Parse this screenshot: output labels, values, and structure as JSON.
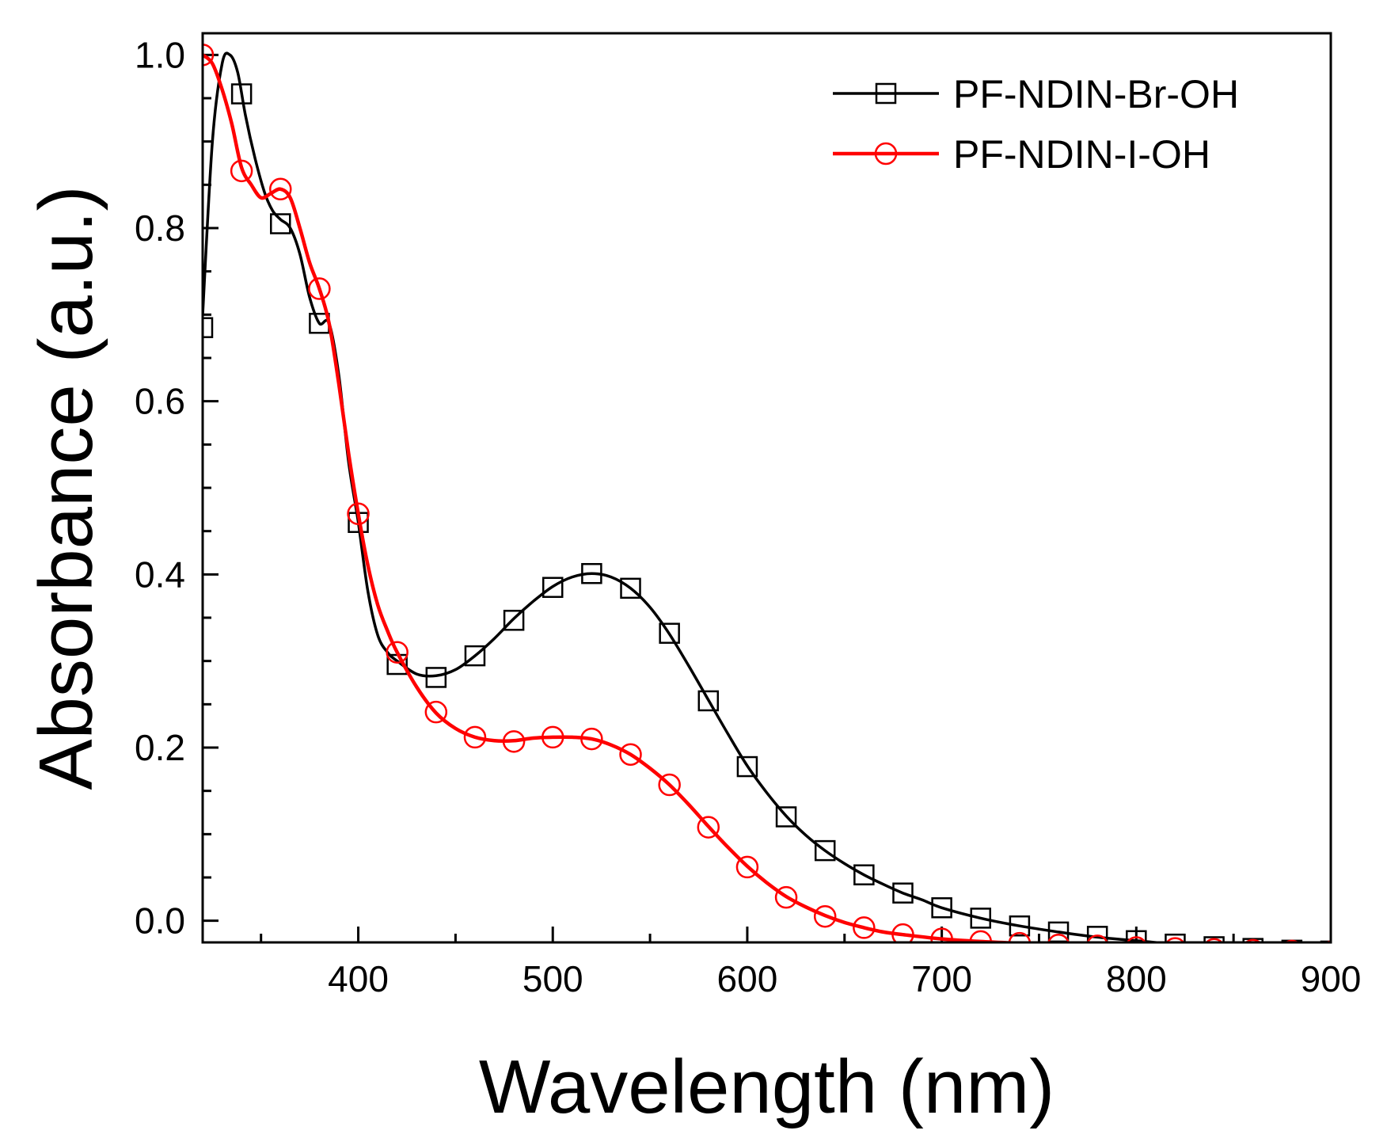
{
  "chart_data": {
    "type": "line",
    "xlabel": "Wavelength (nm)",
    "ylabel": "Absorbance (a.u.)",
    "xlim": [
      320,
      900
    ],
    "ylim": [
      -0.025,
      1.025
    ],
    "x_ticks": [
      400,
      500,
      600,
      700,
      800,
      900
    ],
    "x_tick_labels": [
      "400",
      "500",
      "600",
      "700",
      "800",
      "900"
    ],
    "y_ticks": [
      0.0,
      0.2,
      0.4,
      0.6,
      0.8,
      1.0
    ],
    "y_tick_labels": [
      "0.0",
      "0.2",
      "0.4",
      "0.6",
      "0.8",
      "1.0"
    ],
    "legend_position": "top-right",
    "grid": false,
    "series": [
      {
        "name": "PF-NDIN-Br-OH",
        "color": "#000000",
        "marker": "square",
        "curve": [
          [
            320,
            0.7
          ],
          [
            325,
            0.9
          ],
          [
            330,
            0.99
          ],
          [
            334,
            1.0
          ],
          [
            338,
            0.98
          ],
          [
            342,
            0.93
          ],
          [
            347,
            0.88
          ],
          [
            352,
            0.84
          ],
          [
            356,
            0.82
          ],
          [
            360,
            0.81
          ],
          [
            365,
            0.8
          ],
          [
            370,
            0.77
          ],
          [
            375,
            0.72
          ],
          [
            380,
            0.69
          ],
          [
            385,
            0.69
          ],
          [
            390,
            0.63
          ],
          [
            395,
            0.53
          ],
          [
            400,
            0.46
          ],
          [
            405,
            0.38
          ],
          [
            410,
            0.33
          ],
          [
            415,
            0.31
          ],
          [
            420,
            0.3
          ],
          [
            430,
            0.285
          ],
          [
            440,
            0.283
          ],
          [
            450,
            0.29
          ],
          [
            460,
            0.306
          ],
          [
            470,
            0.326
          ],
          [
            480,
            0.349
          ],
          [
            490,
            0.369
          ],
          [
            500,
            0.386
          ],
          [
            510,
            0.397
          ],
          [
            520,
            0.401
          ],
          [
            530,
            0.397
          ],
          [
            540,
            0.384
          ],
          [
            550,
            0.362
          ],
          [
            560,
            0.331
          ],
          [
            570,
            0.294
          ],
          [
            580,
            0.255
          ],
          [
            590,
            0.216
          ],
          [
            600,
            0.179
          ],
          [
            610,
            0.148
          ],
          [
            620,
            0.121
          ],
          [
            630,
            0.099
          ],
          [
            640,
            0.081
          ],
          [
            650,
            0.066
          ],
          [
            660,
            0.053
          ],
          [
            670,
            0.042
          ],
          [
            680,
            0.032
          ],
          [
            690,
            0.024
          ],
          [
            700,
            0.015
          ],
          [
            720,
            0.003
          ],
          [
            740,
            -0.006
          ],
          [
            760,
            -0.013
          ],
          [
            780,
            -0.019
          ],
          [
            800,
            -0.023
          ],
          [
            820,
            -0.027
          ],
          [
            840,
            -0.03
          ],
          [
            860,
            -0.032
          ],
          [
            880,
            -0.034
          ],
          [
            900,
            -0.035
          ]
        ],
        "markers": [
          [
            320,
            0.685
          ],
          [
            340,
            0.955
          ],
          [
            360,
            0.805
          ],
          [
            380,
            0.69
          ],
          [
            400,
            0.46
          ],
          [
            420,
            0.296
          ],
          [
            440,
            0.281
          ],
          [
            460,
            0.306
          ],
          [
            480,
            0.347
          ],
          [
            500,
            0.385
          ],
          [
            520,
            0.401
          ],
          [
            540,
            0.384
          ],
          [
            560,
            0.332
          ],
          [
            580,
            0.254
          ],
          [
            600,
            0.178
          ],
          [
            620,
            0.12
          ],
          [
            640,
            0.081
          ],
          [
            660,
            0.053
          ],
          [
            680,
            0.032
          ],
          [
            700,
            0.015
          ],
          [
            720,
            0.003
          ],
          [
            740,
            -0.006
          ],
          [
            760,
            -0.013
          ],
          [
            780,
            -0.018
          ],
          [
            800,
            -0.023
          ],
          [
            820,
            -0.027
          ],
          [
            840,
            -0.03
          ],
          [
            860,
            -0.032
          ],
          [
            880,
            -0.034
          ],
          [
            900,
            -0.035
          ]
        ]
      },
      {
        "name": "PF-NDIN-I-OH",
        "color": "#ff0000",
        "marker": "circle",
        "curve": [
          [
            320,
            1.0
          ],
          [
            325,
            0.99
          ],
          [
            330,
            0.96
          ],
          [
            335,
            0.92
          ],
          [
            340,
            0.87
          ],
          [
            345,
            0.85
          ],
          [
            350,
            0.835
          ],
          [
            355,
            0.84
          ],
          [
            360,
            0.845
          ],
          [
            365,
            0.835
          ],
          [
            370,
            0.8
          ],
          [
            375,
            0.76
          ],
          [
            380,
            0.73
          ],
          [
            385,
            0.69
          ],
          [
            390,
            0.62
          ],
          [
            395,
            0.54
          ],
          [
            400,
            0.47
          ],
          [
            405,
            0.41
          ],
          [
            410,
            0.365
          ],
          [
            415,
            0.335
          ],
          [
            420,
            0.31
          ],
          [
            430,
            0.27
          ],
          [
            440,
            0.24
          ],
          [
            450,
            0.222
          ],
          [
            460,
            0.212
          ],
          [
            470,
            0.208
          ],
          [
            480,
            0.208
          ],
          [
            490,
            0.211
          ],
          [
            500,
            0.212
          ],
          [
            510,
            0.212
          ],
          [
            520,
            0.21
          ],
          [
            530,
            0.203
          ],
          [
            540,
            0.192
          ],
          [
            550,
            0.176
          ],
          [
            560,
            0.157
          ],
          [
            570,
            0.134
          ],
          [
            580,
            0.109
          ],
          [
            590,
            0.085
          ],
          [
            600,
            0.063
          ],
          [
            610,
            0.044
          ],
          [
            620,
            0.028
          ],
          [
            630,
            0.016
          ],
          [
            640,
            0.006
          ],
          [
            650,
            -0.002
          ],
          [
            660,
            -0.008
          ],
          [
            670,
            -0.013
          ],
          [
            680,
            -0.016
          ],
          [
            700,
            -0.021
          ],
          [
            720,
            -0.024
          ],
          [
            740,
            -0.026
          ],
          [
            760,
            -0.028
          ],
          [
            780,
            -0.029
          ],
          [
            800,
            -0.031
          ],
          [
            820,
            -0.032
          ],
          [
            840,
            -0.033
          ],
          [
            860,
            -0.034
          ],
          [
            880,
            -0.035
          ],
          [
            900,
            -0.036
          ]
        ],
        "markers": [
          [
            320,
            1.0
          ],
          [
            340,
            0.866
          ],
          [
            360,
            0.845
          ],
          [
            380,
            0.73
          ],
          [
            400,
            0.47
          ],
          [
            420,
            0.31
          ],
          [
            440,
            0.241
          ],
          [
            460,
            0.212
          ],
          [
            480,
            0.207
          ],
          [
            500,
            0.212
          ],
          [
            520,
            0.21
          ],
          [
            540,
            0.192
          ],
          [
            560,
            0.157
          ],
          [
            580,
            0.108
          ],
          [
            600,
            0.062
          ],
          [
            620,
            0.027
          ],
          [
            640,
            0.005
          ],
          [
            660,
            -0.008
          ],
          [
            680,
            -0.016
          ],
          [
            700,
            -0.021
          ],
          [
            720,
            -0.024
          ],
          [
            740,
            -0.026
          ],
          [
            760,
            -0.028
          ],
          [
            780,
            -0.029
          ],
          [
            800,
            -0.031
          ],
          [
            820,
            -0.032
          ],
          [
            840,
            -0.033
          ],
          [
            860,
            -0.034
          ],
          [
            880,
            -0.035
          ],
          [
            900,
            -0.036
          ]
        ]
      }
    ]
  }
}
